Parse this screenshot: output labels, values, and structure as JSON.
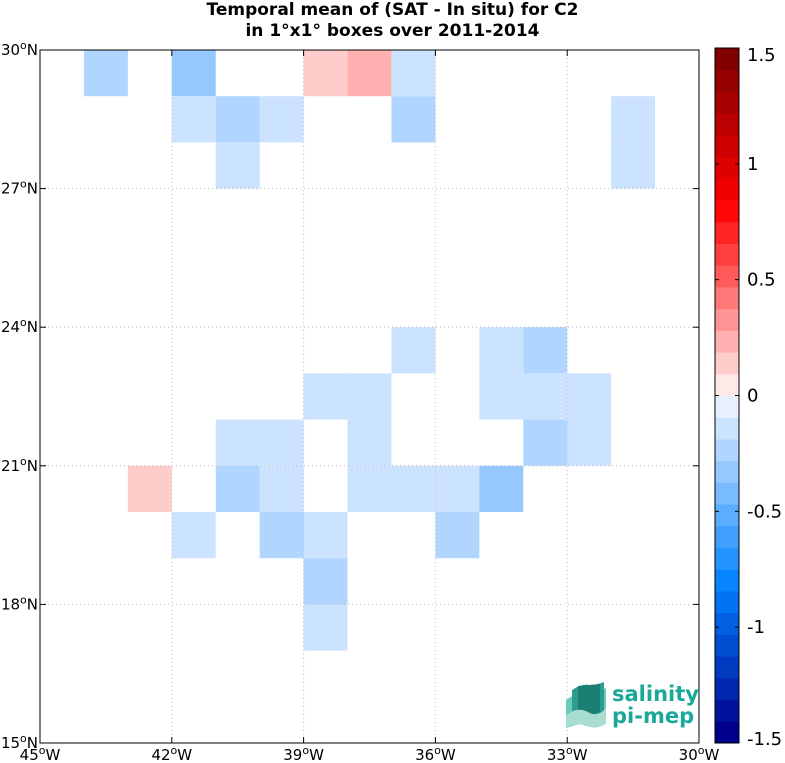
{
  "chart_data": {
    "type": "heatmap",
    "title_line1": "Temporal mean of (SAT - In situ) for C2",
    "title_line2": "in 1°x1° boxes over 2011-2014",
    "xlim": [
      -45,
      -30
    ],
    "ylim": [
      15,
      30
    ],
    "x_ticks": [
      {
        "value": -45,
        "label": "45°W"
      },
      {
        "value": -42,
        "label": "42°W"
      },
      {
        "value": -39,
        "label": "39°W"
      },
      {
        "value": -36,
        "label": "36°W"
      },
      {
        "value": -33,
        "label": "33°W"
      },
      {
        "value": -30,
        "label": "30°W"
      }
    ],
    "y_ticks": [
      {
        "value": 15,
        "label": "15°N"
      },
      {
        "value": 18,
        "label": "18°N"
      },
      {
        "value": 21,
        "label": "21°N"
      },
      {
        "value": 24,
        "label": "24°N"
      },
      {
        "value": 27,
        "label": "27°N"
      },
      {
        "value": 30,
        "label": "30°N"
      }
    ],
    "grid": true,
    "colorbar": {
      "range": [
        -1.5,
        1.5
      ],
      "levels": 32,
      "ticks": [
        1.5,
        1,
        0.5,
        0,
        -0.5,
        -1,
        -1.5
      ],
      "tick_labels": [
        "1.5",
        "1",
        "0.5",
        "0",
        "-0.5",
        "-1",
        "-1.5"
      ]
    },
    "cells": [
      {
        "lon": -44,
        "lat": 29,
        "value": -0.25
      },
      {
        "lon": -42,
        "lat": 29,
        "value": -0.35
      },
      {
        "lon": -39,
        "lat": 29,
        "value": 0.15
      },
      {
        "lon": -38,
        "lat": 29,
        "value": 0.25
      },
      {
        "lon": -37,
        "lat": 29,
        "value": -0.15
      },
      {
        "lon": -42,
        "lat": 28,
        "value": -0.15
      },
      {
        "lon": -41,
        "lat": 28,
        "value": -0.25
      },
      {
        "lon": -40,
        "lat": 28,
        "value": -0.15
      },
      {
        "lon": -37,
        "lat": 28,
        "value": -0.25
      },
      {
        "lon": -32,
        "lat": 28,
        "value": -0.15
      },
      {
        "lon": -41,
        "lat": 27,
        "value": -0.15
      },
      {
        "lon": -32,
        "lat": 27,
        "value": -0.15
      },
      {
        "lon": -37,
        "lat": 23,
        "value": -0.15
      },
      {
        "lon": -35,
        "lat": 23,
        "value": -0.15
      },
      {
        "lon": -34,
        "lat": 23,
        "value": -0.25
      },
      {
        "lon": -39,
        "lat": 22,
        "value": -0.15
      },
      {
        "lon": -38,
        "lat": 22,
        "value": -0.15
      },
      {
        "lon": -35,
        "lat": 22,
        "value": -0.15
      },
      {
        "lon": -34,
        "lat": 22,
        "value": -0.15
      },
      {
        "lon": -33,
        "lat": 22,
        "value": -0.15
      },
      {
        "lon": -41,
        "lat": 21,
        "value": -0.15
      },
      {
        "lon": -40,
        "lat": 21,
        "value": -0.15
      },
      {
        "lon": -38,
        "lat": 21,
        "value": -0.15
      },
      {
        "lon": -34,
        "lat": 21,
        "value": -0.25
      },
      {
        "lon": -33,
        "lat": 21,
        "value": -0.15
      },
      {
        "lon": -43,
        "lat": 20,
        "value": 0.15
      },
      {
        "lon": -41,
        "lat": 20,
        "value": -0.25
      },
      {
        "lon": -40,
        "lat": 20,
        "value": -0.15
      },
      {
        "lon": -38,
        "lat": 20,
        "value": -0.15
      },
      {
        "lon": -37,
        "lat": 20,
        "value": -0.15
      },
      {
        "lon": -36,
        "lat": 20,
        "value": -0.15
      },
      {
        "lon": -35,
        "lat": 20,
        "value": -0.35
      },
      {
        "lon": -42,
        "lat": 19,
        "value": -0.15
      },
      {
        "lon": -40,
        "lat": 19,
        "value": -0.25
      },
      {
        "lon": -39,
        "lat": 19,
        "value": -0.15
      },
      {
        "lon": -36,
        "lat": 19,
        "value": -0.25
      },
      {
        "lon": -39,
        "lat": 18,
        "value": -0.25
      },
      {
        "lon": -39,
        "lat": 17,
        "value": -0.15
      }
    ]
  },
  "logo": {
    "line1": "salinity",
    "line2": "pi-mep",
    "color": "#1aa89b"
  }
}
